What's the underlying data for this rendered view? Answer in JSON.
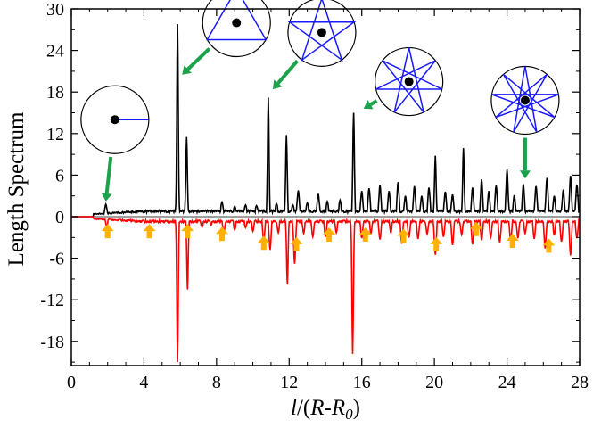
{
  "chart_data": {
    "type": "line",
    "xlabel": {
      "italic": "l",
      "slash": "/(",
      "R": "R",
      "dash": "-",
      "R0": "R",
      "sub": "0",
      "close": ")"
    },
    "ylabel": "Length Spectrum",
    "xlim": [
      0,
      28
    ],
    "ylim": [
      -21.5,
      30
    ],
    "x_ticks": [
      0,
      4,
      8,
      12,
      16,
      20,
      24,
      28
    ],
    "y_ticks": [
      -18,
      -12,
      -6,
      0,
      6,
      12,
      18,
      24,
      30
    ],
    "grid": false,
    "colors": {
      "series_top": "#000000",
      "series_bottom": "#ff0000",
      "arrow_marker": "#ffb000",
      "pointer": "#1aa34a",
      "orbit": "#1a1aff"
    },
    "series": [
      {
        "name": "upper (black)",
        "color": "#000000",
        "baseline": 0.2,
        "noise": 0.9,
        "points": [
          [
            1.3,
            0.3
          ],
          [
            1.9,
            1.8
          ],
          [
            2.4,
            0.6
          ],
          [
            2.9,
            0.3
          ],
          [
            3.4,
            0.5
          ],
          [
            3.9,
            0.4
          ],
          [
            4.6,
            0.7
          ],
          [
            5.2,
            0.6
          ],
          [
            5.85,
            27.8
          ],
          [
            6.35,
            11.5
          ],
          [
            7.1,
            0.8
          ],
          [
            7.6,
            0.9
          ],
          [
            8.3,
            2.1
          ],
          [
            9.0,
            1.5
          ],
          [
            9.6,
            1.7
          ],
          [
            10.2,
            1.6
          ],
          [
            10.85,
            17.2
          ],
          [
            11.3,
            1.9
          ],
          [
            11.85,
            11.8
          ],
          [
            12.2,
            1.7
          ],
          [
            12.5,
            3.8
          ],
          [
            13.0,
            2.0
          ],
          [
            13.6,
            3.3
          ],
          [
            14.1,
            2.2
          ],
          [
            14.8,
            2.4
          ],
          [
            15.55,
            15.0
          ],
          [
            16.0,
            3.7
          ],
          [
            16.4,
            4.1
          ],
          [
            17.0,
            4.6
          ],
          [
            17.5,
            3.7
          ],
          [
            18.0,
            5.0
          ],
          [
            18.4,
            3.0
          ],
          [
            18.9,
            4.4
          ],
          [
            19.3,
            3.0
          ],
          [
            19.7,
            4.2
          ],
          [
            20.05,
            8.8
          ],
          [
            20.6,
            3.6
          ],
          [
            21.0,
            3.2
          ],
          [
            21.6,
            9.9
          ],
          [
            22.1,
            4.2
          ],
          [
            22.6,
            5.4
          ],
          [
            23.0,
            3.7
          ],
          [
            23.4,
            4.5
          ],
          [
            24.0,
            6.8
          ],
          [
            24.4,
            3.1
          ],
          [
            24.9,
            4.7
          ],
          [
            25.6,
            4.4
          ],
          [
            26.2,
            5.6
          ],
          [
            26.6,
            3.0
          ],
          [
            27.1,
            3.9
          ],
          [
            27.5,
            5.9
          ],
          [
            27.85,
            4.6
          ]
        ]
      },
      {
        "name": "lower (red)",
        "color": "#ff0000",
        "baseline": -0.1,
        "noise": -0.9,
        "points": [
          [
            1.4,
            -0.4
          ],
          [
            1.95,
            -1.4
          ],
          [
            2.5,
            -0.5
          ],
          [
            3.2,
            -0.4
          ],
          [
            4.3,
            -0.5
          ],
          [
            5.0,
            -0.6
          ],
          [
            5.85,
            -21.0
          ],
          [
            6.4,
            -10.5
          ],
          [
            7.2,
            -1.5
          ],
          [
            7.7,
            -1.2
          ],
          [
            8.4,
            -2.4
          ],
          [
            9.0,
            -1.9
          ],
          [
            9.6,
            -1.6
          ],
          [
            10.0,
            -2.1
          ],
          [
            10.6,
            -3.6
          ],
          [
            10.95,
            -4.8
          ],
          [
            11.4,
            -2.3
          ],
          [
            11.9,
            -9.8
          ],
          [
            12.3,
            -6.8
          ],
          [
            12.8,
            -2.4
          ],
          [
            13.3,
            -2.9
          ],
          [
            14.0,
            -2.9
          ],
          [
            14.6,
            -2.3
          ],
          [
            15.5,
            -19.8
          ],
          [
            16.0,
            -3.1
          ],
          [
            16.5,
            -2.4
          ],
          [
            17.0,
            -3.3
          ],
          [
            17.6,
            -2.3
          ],
          [
            18.2,
            -3.9
          ],
          [
            18.6,
            -3.0
          ],
          [
            19.1,
            -3.2
          ],
          [
            19.6,
            -2.5
          ],
          [
            20.05,
            -5.5
          ],
          [
            20.5,
            -2.9
          ],
          [
            21.0,
            -4.1
          ],
          [
            21.5,
            -2.6
          ],
          [
            22.1,
            -4.0
          ],
          [
            22.6,
            -3.4
          ],
          [
            23.1,
            -3.0
          ],
          [
            23.6,
            -3.7
          ],
          [
            24.2,
            -3.4
          ],
          [
            24.6,
            -3.1
          ],
          [
            25.0,
            -2.4
          ],
          [
            25.5,
            -3.2
          ],
          [
            26.1,
            -4.6
          ],
          [
            26.6,
            -2.7
          ],
          [
            27.0,
            -3.6
          ],
          [
            27.5,
            -5.6
          ],
          [
            27.85,
            -3.1
          ]
        ]
      }
    ],
    "peak_arrows_x": [
      2.0,
      4.3,
      6.4,
      8.3,
      10.6,
      12.4,
      14.2,
      16.2,
      18.3,
      20.1,
      22.3,
      24.3,
      26.3
    ],
    "peak_arrows_y": [
      -1.3,
      -1.3,
      -1.3,
      -1.7,
      -3.0,
      -3.2,
      -1.8,
      -1.8,
      -2.0,
      -3.2,
      -1.0,
      -2.7,
      -3.4
    ],
    "orbit_insets": [
      {
        "name": "diameter",
        "x": 2.4,
        "y": 14.0,
        "angle_to": 2.0,
        "target": [
          1.9,
          2.2
        ],
        "kind": "diameter"
      },
      {
        "name": "triangle",
        "x": 9.1,
        "y": 28.0,
        "target": [
          6.1,
          20.5
        ],
        "kind": "polygon",
        "n": 3,
        "step": 1
      },
      {
        "name": "pentagram",
        "x": 13.8,
        "y": 26.6,
        "target": [
          11.1,
          18.4
        ],
        "kind": "polygon",
        "n": 5,
        "step": 2
      },
      {
        "name": "heptagram",
        "x": 18.6,
        "y": 19.5,
        "target": [
          16.1,
          15.6
        ],
        "kind": "polygon",
        "n": 7,
        "step": 3
      },
      {
        "name": "enneagram",
        "x": 25.0,
        "y": 16.8,
        "target": [
          25.0,
          5.5
        ],
        "kind": "polygon",
        "n": 9,
        "step": 4
      }
    ]
  }
}
